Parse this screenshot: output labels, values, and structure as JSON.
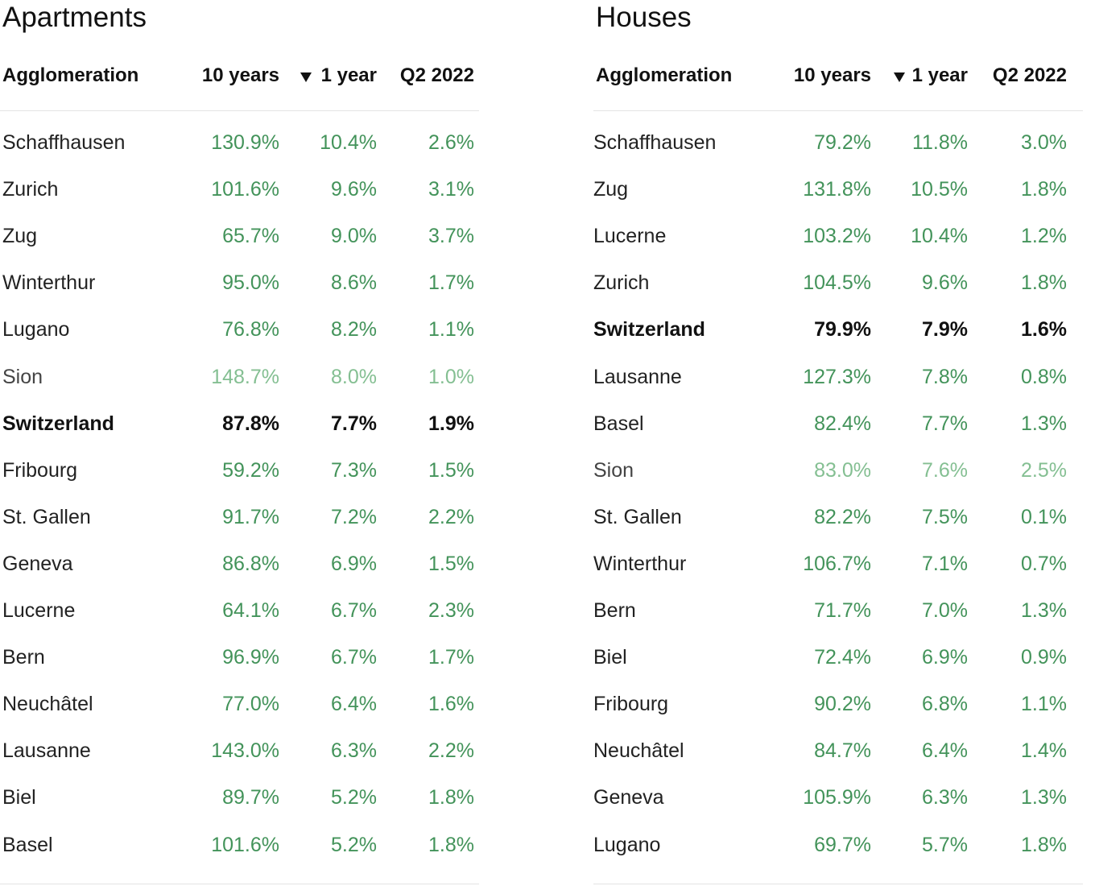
{
  "tables": [
    {
      "title": "Apartments",
      "headers": [
        "Agglomeration",
        "10 years",
        "1 year",
        "Q2 2022"
      ],
      "bold_row": 6,
      "muted_row": 5,
      "rows": [
        [
          "Schaffhausen",
          "130.9%",
          "10.4%",
          "2.6%"
        ],
        [
          "Zurich",
          "101.6%",
          "9.6%",
          "3.1%"
        ],
        [
          "Zug",
          "65.7%",
          "9.0%",
          "3.7%"
        ],
        [
          "Winterthur",
          "95.0%",
          "8.6%",
          "1.7%"
        ],
        [
          "Lugano",
          "76.8%",
          "8.2%",
          "1.1%"
        ],
        [
          "Sion",
          "148.7%",
          "8.0%",
          "1.0%"
        ],
        [
          "Switzerland",
          "87.8%",
          "7.7%",
          "1.9%"
        ],
        [
          "Fribourg",
          "59.2%",
          "7.3%",
          "1.5%"
        ],
        [
          "St. Gallen",
          "91.7%",
          "7.2%",
          "2.2%"
        ],
        [
          "Geneva",
          "86.8%",
          "6.9%",
          "1.5%"
        ],
        [
          "Lucerne",
          "64.1%",
          "6.7%",
          "2.3%"
        ],
        [
          "Bern",
          "96.9%",
          "6.7%",
          "1.7%"
        ],
        [
          "Neuchâtel",
          "77.0%",
          "6.4%",
          "1.6%"
        ],
        [
          "Lausanne",
          "143.0%",
          "6.3%",
          "2.2%"
        ],
        [
          "Biel",
          "89.7%",
          "5.2%",
          "1.8%"
        ],
        [
          "Basel",
          "101.6%",
          "5.2%",
          "1.8%"
        ]
      ]
    },
    {
      "title": "Houses",
      "headers": [
        "Agglomeration",
        "10 years",
        "1 year",
        "Q2 2022"
      ],
      "bold_row": 4,
      "muted_row": 7,
      "rows": [
        [
          "Schaffhausen",
          "79.2%",
          "11.8%",
          "3.0%"
        ],
        [
          "Zug",
          "131.8%",
          "10.5%",
          "1.8%"
        ],
        [
          "Lucerne",
          "103.2%",
          "10.4%",
          "1.2%"
        ],
        [
          "Zurich",
          "104.5%",
          "9.6%",
          "1.8%"
        ],
        [
          "Switzerland",
          "79.9%",
          "7.9%",
          "1.6%"
        ],
        [
          "Lausanne",
          "127.3%",
          "7.8%",
          "0.8%"
        ],
        [
          "Basel",
          "82.4%",
          "7.7%",
          "1.3%"
        ],
        [
          "Sion",
          "83.0%",
          "7.6%",
          "2.5%"
        ],
        [
          "St. Gallen",
          "82.2%",
          "7.5%",
          "0.1%"
        ],
        [
          "Winterthur",
          "106.7%",
          "7.1%",
          "0.7%"
        ],
        [
          "Bern",
          "71.7%",
          "7.0%",
          "1.3%"
        ],
        [
          "Biel",
          "72.4%",
          "6.9%",
          "0.9%"
        ],
        [
          "Fribourg",
          "90.2%",
          "6.8%",
          "1.1%"
        ],
        [
          "Neuchâtel",
          "84.7%",
          "6.4%",
          "1.4%"
        ],
        [
          "Geneva",
          "105.9%",
          "6.3%",
          "1.3%"
        ],
        [
          "Lugano",
          "69.7%",
          "5.7%",
          "1.8%"
        ]
      ]
    }
  ]
}
